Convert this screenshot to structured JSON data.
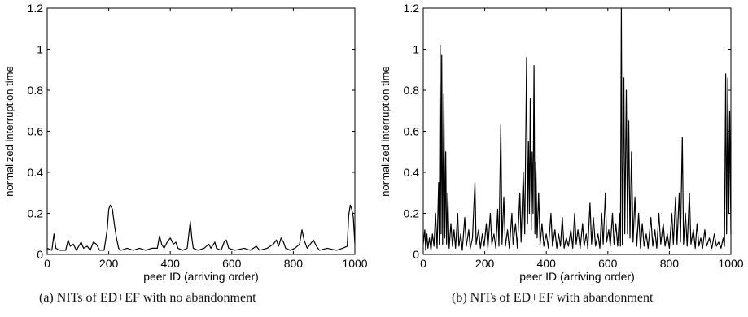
{
  "captions": [
    "(a) NITs of ED+EF with no abandonment",
    "(b) NITs of ED+EF with abandonment"
  ],
  "chart_data": [
    {
      "type": "line",
      "title": "",
      "xlabel": "peer ID (arriving order)",
      "ylabel": "normalized interruption time",
      "xlim": [
        0,
        1000
      ],
      "ylim": [
        0,
        1.2
      ],
      "xticks": [
        0,
        200,
        400,
        600,
        800,
        1000
      ],
      "yticks": [
        0,
        0.2,
        0.4,
        0.6,
        0.8,
        1,
        1.2
      ],
      "ytick_labels": [
        "0",
        "0.2",
        "0.4",
        "0.6",
        "0.8",
        "1",
        "1.2"
      ],
      "grid": false,
      "series": [
        {
          "color": "#000000",
          "points": [
            [
              0,
              0.03
            ],
            [
              15,
              0.02
            ],
            [
              22,
              0.1
            ],
            [
              28,
              0.03
            ],
            [
              40,
              0.02
            ],
            [
              60,
              0.02
            ],
            [
              68,
              0.07
            ],
            [
              75,
              0.04
            ],
            [
              85,
              0.05
            ],
            [
              95,
              0.02
            ],
            [
              110,
              0.06
            ],
            [
              118,
              0.03
            ],
            [
              130,
              0.04
            ],
            [
              140,
              0.02
            ],
            [
              150,
              0.06
            ],
            [
              160,
              0.05
            ],
            [
              170,
              0.02
            ],
            [
              185,
              0.02
            ],
            [
              195,
              0.12
            ],
            [
              200,
              0.22
            ],
            [
              205,
              0.24
            ],
            [
              212,
              0.22
            ],
            [
              218,
              0.15
            ],
            [
              225,
              0.08
            ],
            [
              232,
              0.03
            ],
            [
              240,
              0.02
            ],
            [
              260,
              0.03
            ],
            [
              280,
              0.02
            ],
            [
              300,
              0.03
            ],
            [
              320,
              0.02
            ],
            [
              340,
              0.03
            ],
            [
              358,
              0.03
            ],
            [
              365,
              0.09
            ],
            [
              372,
              0.05
            ],
            [
              380,
              0.03
            ],
            [
              390,
              0.06
            ],
            [
              400,
              0.08
            ],
            [
              410,
              0.05
            ],
            [
              418,
              0.06
            ],
            [
              425,
              0.03
            ],
            [
              440,
              0.02
            ],
            [
              455,
              0.03
            ],
            [
              465,
              0.16
            ],
            [
              470,
              0.08
            ],
            [
              475,
              0.03
            ],
            [
              490,
              0.02
            ],
            [
              510,
              0.03
            ],
            [
              525,
              0.05
            ],
            [
              532,
              0.03
            ],
            [
              545,
              0.06
            ],
            [
              550,
              0.03
            ],
            [
              565,
              0.02
            ],
            [
              575,
              0.06
            ],
            [
              582,
              0.07
            ],
            [
              590,
              0.03
            ],
            [
              610,
              0.02
            ],
            [
              640,
              0.03
            ],
            [
              660,
              0.02
            ],
            [
              680,
              0.04
            ],
            [
              690,
              0.02
            ],
            [
              715,
              0.03
            ],
            [
              735,
              0.05
            ],
            [
              745,
              0.07
            ],
            [
              752,
              0.04
            ],
            [
              760,
              0.08
            ],
            [
              768,
              0.06
            ],
            [
              775,
              0.03
            ],
            [
              790,
              0.02
            ],
            [
              805,
              0.03
            ],
            [
              820,
              0.05
            ],
            [
              828,
              0.12
            ],
            [
              835,
              0.07
            ],
            [
              845,
              0.03
            ],
            [
              855,
              0.05
            ],
            [
              865,
              0.07
            ],
            [
              875,
              0.04
            ],
            [
              885,
              0.02
            ],
            [
              910,
              0.03
            ],
            [
              940,
              0.02
            ],
            [
              960,
              0.03
            ],
            [
              975,
              0.04
            ],
            [
              980,
              0.19
            ],
            [
              985,
              0.24
            ],
            [
              990,
              0.22
            ],
            [
              995,
              0.18
            ],
            [
              1000,
              0.05
            ]
          ]
        }
      ]
    },
    {
      "type": "line",
      "title": "",
      "xlabel": "peer ID (arriving order)",
      "ylabel": "normalized interruption time",
      "xlim": [
        0,
        1000
      ],
      "ylim": [
        0,
        1.2
      ],
      "xticks": [
        0,
        200,
        400,
        600,
        800,
        1000
      ],
      "yticks": [
        0,
        0.2,
        0.4,
        0.6,
        0.8,
        1,
        1.2
      ],
      "ytick_labels": [
        "0",
        "0.2",
        "0.4",
        "0.6",
        "0.8",
        "1",
        "1.2"
      ],
      "grid": false,
      "series": [
        {
          "color": "#000000",
          "points": [
            [
              0,
              0.05
            ],
            [
              5,
              0.12
            ],
            [
              8,
              0.02
            ],
            [
              12,
              0.1
            ],
            [
              15,
              0.03
            ],
            [
              20,
              0.08
            ],
            [
              25,
              0.02
            ],
            [
              30,
              0.1
            ],
            [
              35,
              0.04
            ],
            [
              40,
              0.2
            ],
            [
              45,
              0.03
            ],
            [
              50,
              0.35
            ],
            [
              52,
              0.05
            ],
            [
              55,
              1.02
            ],
            [
              58,
              0.1
            ],
            [
              60,
              0.97
            ],
            [
              63,
              0.05
            ],
            [
              67,
              0.78
            ],
            [
              70,
              0.08
            ],
            [
              73,
              0.5
            ],
            [
              76,
              0.05
            ],
            [
              80,
              0.3
            ],
            [
              84,
              0.03
            ],
            [
              90,
              0.15
            ],
            [
              95,
              0.04
            ],
            [
              100,
              0.12
            ],
            [
              105,
              0.03
            ],
            [
              112,
              0.2
            ],
            [
              116,
              0.04
            ],
            [
              122,
              0.1
            ],
            [
              127,
              0.02
            ],
            [
              135,
              0.18
            ],
            [
              140,
              0.04
            ],
            [
              148,
              0.12
            ],
            [
              153,
              0.03
            ],
            [
              160,
              0.08
            ],
            [
              168,
              0.35
            ],
            [
              172,
              0.05
            ],
            [
              180,
              0.12
            ],
            [
              186,
              0.03
            ],
            [
              192,
              0.1
            ],
            [
              198,
              0.04
            ],
            [
              205,
              0.15
            ],
            [
              210,
              0.03
            ],
            [
              218,
              0.2
            ],
            [
              223,
              0.05
            ],
            [
              230,
              0.1
            ],
            [
              236,
              0.03
            ],
            [
              242,
              0.22
            ],
            [
              246,
              0.04
            ],
            [
              252,
              0.63
            ],
            [
              256,
              0.05
            ],
            [
              262,
              0.28
            ],
            [
              267,
              0.04
            ],
            [
              274,
              0.12
            ],
            [
              280,
              0.03
            ],
            [
              288,
              0.2
            ],
            [
              292,
              0.05
            ],
            [
              300,
              0.15
            ],
            [
              306,
              0.03
            ],
            [
              314,
              0.3
            ],
            [
              318,
              0.06
            ],
            [
              325,
              0.4
            ],
            [
              330,
              0.1
            ],
            [
              336,
              0.96
            ],
            [
              339,
              0.15
            ],
            [
              342,
              0.55
            ],
            [
              345,
              0.2
            ],
            [
              348,
              0.76
            ],
            [
              351,
              0.12
            ],
            [
              354,
              0.5
            ],
            [
              357,
              0.2
            ],
            [
              360,
              0.92
            ],
            [
              363,
              0.1
            ],
            [
              366,
              0.45
            ],
            [
              370,
              0.08
            ],
            [
              375,
              0.3
            ],
            [
              380,
              0.05
            ],
            [
              386,
              0.15
            ],
            [
              392,
              0.04
            ],
            [
              400,
              0.1
            ],
            [
              407,
              0.03
            ],
            [
              415,
              0.2
            ],
            [
              420,
              0.04
            ],
            [
              428,
              0.12
            ],
            [
              434,
              0.03
            ],
            [
              440,
              0.1
            ],
            [
              446,
              0.04
            ],
            [
              452,
              0.18
            ],
            [
              458,
              0.03
            ],
            [
              465,
              0.08
            ],
            [
              472,
              0.04
            ],
            [
              480,
              0.12
            ],
            [
              486,
              0.03
            ],
            [
              492,
              0.2
            ],
            [
              497,
              0.05
            ],
            [
              503,
              0.12
            ],
            [
              510,
              0.03
            ],
            [
              518,
              0.15
            ],
            [
              523,
              0.04
            ],
            [
              530,
              0.1
            ],
            [
              535,
              0.03
            ],
            [
              542,
              0.25
            ],
            [
              547,
              0.05
            ],
            [
              553,
              0.18
            ],
            [
              560,
              0.04
            ],
            [
              568,
              0.1
            ],
            [
              574,
              0.03
            ],
            [
              580,
              0.2
            ],
            [
              585,
              0.05
            ],
            [
              592,
              0.3
            ],
            [
              596,
              0.06
            ],
            [
              603,
              0.12
            ],
            [
              608,
              0.04
            ],
            [
              615,
              0.2
            ],
            [
              620,
              0.05
            ],
            [
              626,
              0.15
            ],
            [
              632,
              0.04
            ],
            [
              638,
              0.2
            ],
            [
              641,
              0.04
            ],
            [
              644,
              1.2
            ],
            [
              647,
              0.05
            ],
            [
              652,
              0.86
            ],
            [
              655,
              0.1
            ],
            [
              660,
              0.8
            ],
            [
              664,
              0.1
            ],
            [
              668,
              0.65
            ],
            [
              672,
              0.08
            ],
            [
              677,
              0.5
            ],
            [
              682,
              0.06
            ],
            [
              688,
              0.28
            ],
            [
              694,
              0.04
            ],
            [
              700,
              0.2
            ],
            [
              706,
              0.03
            ],
            [
              712,
              0.15
            ],
            [
              718,
              0.04
            ],
            [
              725,
              0.1
            ],
            [
              731,
              0.03
            ],
            [
              740,
              0.18
            ],
            [
              746,
              0.04
            ],
            [
              753,
              0.12
            ],
            [
              759,
              0.03
            ],
            [
              766,
              0.2
            ],
            [
              772,
              0.05
            ],
            [
              780,
              0.15
            ],
            [
              786,
              0.04
            ],
            [
              793,
              0.1
            ],
            [
              800,
              0.03
            ],
            [
              808,
              0.2
            ],
            [
              813,
              0.05
            ],
            [
              820,
              0.28
            ],
            [
              825,
              0.05
            ],
            [
              832,
              0.3
            ],
            [
              836,
              0.06
            ],
            [
              842,
              0.57
            ],
            [
              846,
              0.05
            ],
            [
              852,
              0.2
            ],
            [
              858,
              0.04
            ],
            [
              865,
              0.3
            ],
            [
              870,
              0.05
            ],
            [
              878,
              0.12
            ],
            [
              884,
              0.03
            ],
            [
              890,
              0.15
            ],
            [
              896,
              0.04
            ],
            [
              902,
              0.08
            ],
            [
              908,
              0.03
            ],
            [
              915,
              0.12
            ],
            [
              921,
              0.04
            ],
            [
              930,
              0.08
            ],
            [
              938,
              0.03
            ],
            [
              946,
              0.1
            ],
            [
              953,
              0.04
            ],
            [
              960,
              0.06
            ],
            [
              968,
              0.03
            ],
            [
              975,
              0.08
            ],
            [
              979,
              0.04
            ],
            [
              983,
              0.88
            ],
            [
              986,
              0.1
            ],
            [
              990,
              0.86
            ],
            [
              993,
              0.2
            ],
            [
              996,
              0.7
            ],
            [
              1000,
              0.1
            ]
          ]
        }
      ]
    }
  ]
}
